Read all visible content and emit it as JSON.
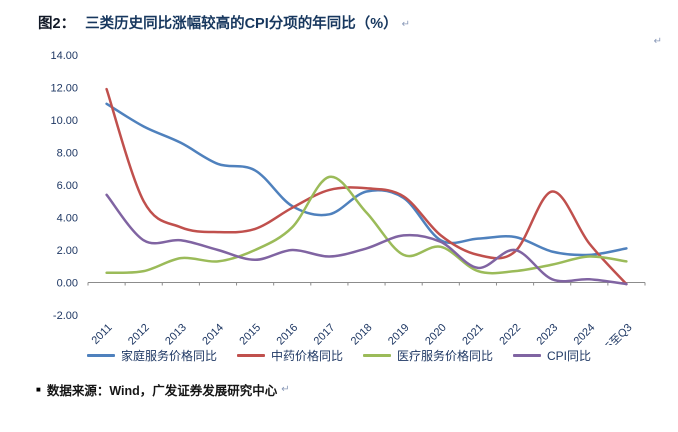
{
  "title": {
    "prefix": "图2：",
    "text": "三类历史同比涨幅较高的CPI分项的年同比（%）"
  },
  "marks": {
    "return_mark": "↵"
  },
  "source": {
    "bullet": "■",
    "text": "数据来源：Wind，广发证券发展研究中心"
  },
  "chart_data": {
    "type": "line",
    "title": "三类历史同比涨幅较高的CPI分项的年同比（%）",
    "categories": [
      "2011",
      "2012",
      "2013",
      "2014",
      "2015",
      "2016",
      "2017",
      "2018",
      "2019",
      "2020",
      "2021",
      "2022",
      "2023",
      "2024",
      "2025至Q3"
    ],
    "series": [
      {
        "name": "家庭服务价格同比",
        "color": "#4F81BD",
        "values": [
          11.0,
          9.6,
          8.6,
          7.3,
          6.9,
          4.7,
          4.2,
          5.6,
          5.2,
          2.6,
          2.7,
          2.8,
          1.9,
          1.7,
          2.1
        ]
      },
      {
        "name": "中药价格同比",
        "color": "#C0504D",
        "values": [
          11.9,
          5.0,
          3.4,
          3.1,
          3.3,
          4.6,
          5.7,
          5.8,
          5.3,
          2.9,
          1.7,
          1.9,
          5.6,
          2.4,
          -0.1
        ]
      },
      {
        "name": "医疗服务价格同比",
        "color": "#9BBB59",
        "values": [
          0.6,
          0.7,
          1.5,
          1.3,
          2.0,
          3.4,
          6.5,
          4.3,
          1.7,
          2.2,
          0.7,
          0.7,
          1.1,
          1.6,
          1.3
        ]
      },
      {
        "name": "CPI同比",
        "color": "#8064A2",
        "values": [
          5.4,
          2.6,
          2.6,
          2.0,
          1.4,
          2.0,
          1.6,
          2.1,
          2.9,
          2.5,
          0.9,
          2.0,
          0.2,
          0.2,
          -0.1
        ]
      }
    ],
    "ylim": [
      -2,
      14
    ],
    "y_ticks": [
      {
        "label": "-2.00",
        "value": -2
      },
      {
        "label": "0.00",
        "value": 0
      },
      {
        "label": "2.00",
        "value": 2
      },
      {
        "label": "4.00",
        "value": 4
      },
      {
        "label": "6.00",
        "value": 6
      },
      {
        "label": "8.00",
        "value": 8
      },
      {
        "label": "10.00",
        "value": 10
      },
      {
        "label": "12.00",
        "value": 12
      },
      {
        "label": "14.00",
        "value": 14
      }
    ],
    "grid": false,
    "smooth": true,
    "legend_position": "bottom"
  }
}
